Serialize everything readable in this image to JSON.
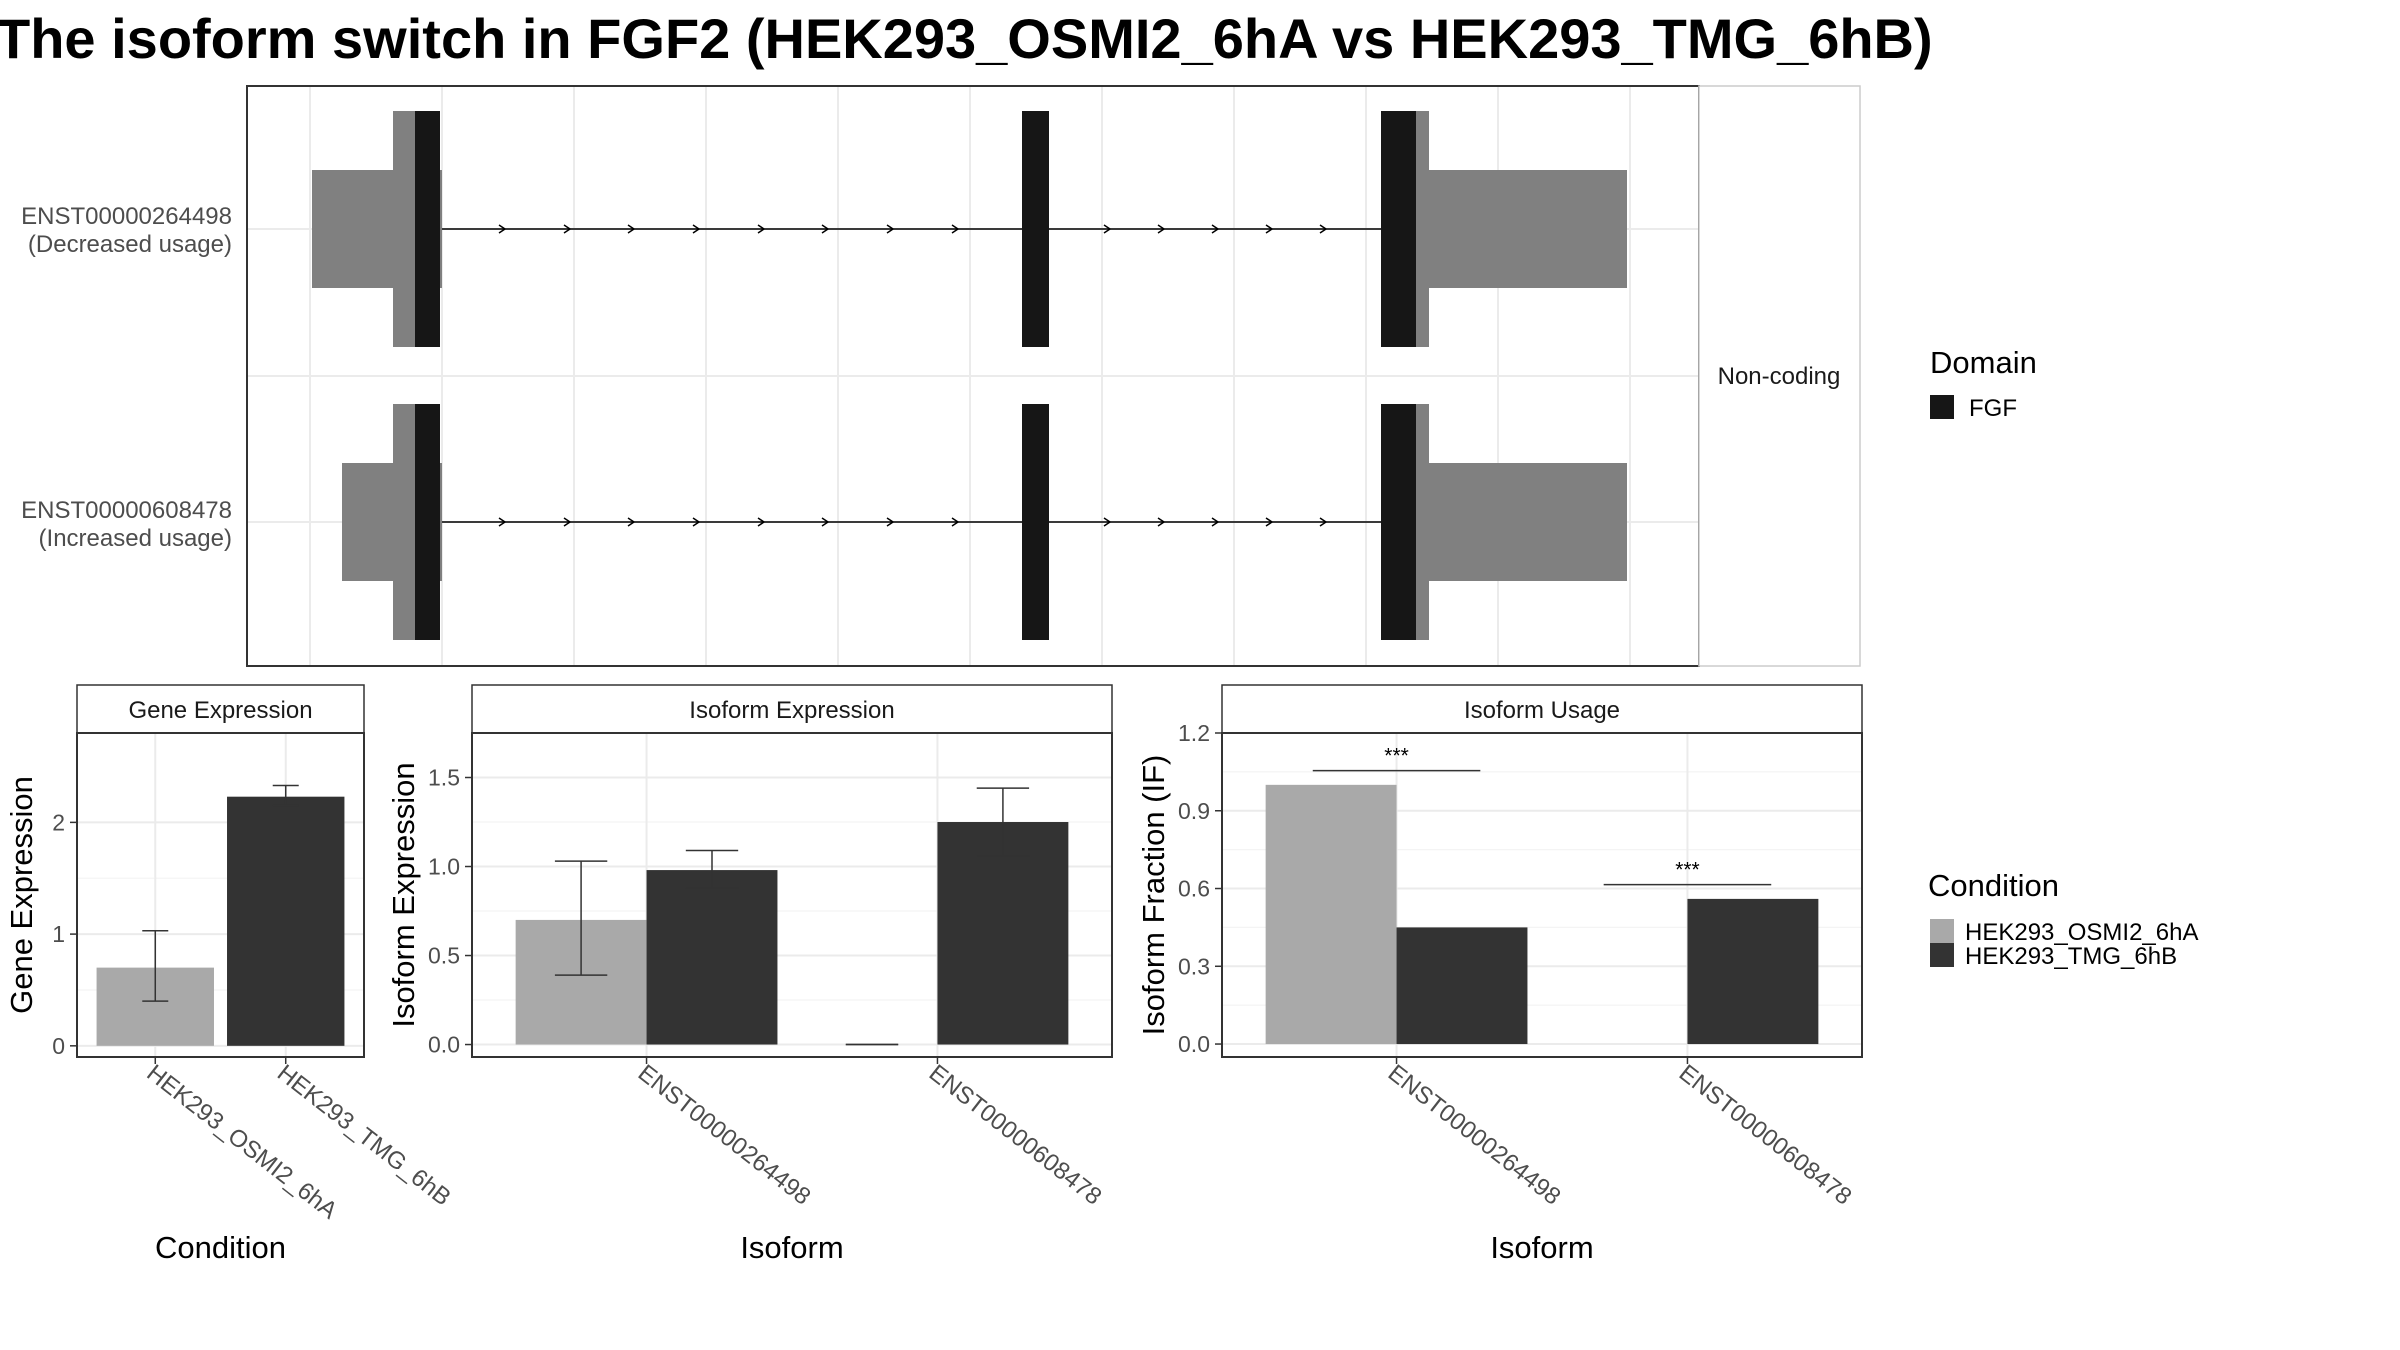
{
  "title": "The isoform switch in FGF2 (HEK293_OSMI2_6hA vs HEK293_TMG_6hB)",
  "colors": {
    "condition_a": "#A9A9A9",
    "condition_b": "#333333",
    "domain": "#161616",
    "utr": "#808080",
    "grid": "#EBEBEB",
    "panel_border": "#333333",
    "strip_fill": "#FFFFFF"
  },
  "structure": {
    "facet_label": "Non-coding",
    "transcripts": [
      {
        "id": "ENST00000264498",
        "usage_note": "(Decreased usage)"
      },
      {
        "id": "ENST00000608478",
        "usage_note": "(Increased usage)"
      }
    ],
    "legend": {
      "title": "Domain",
      "items": [
        {
          "label": "FGF",
          "color": "#161616"
        }
      ]
    }
  },
  "conditions": [
    {
      "name": "HEK293_OSMI2_6hA",
      "color": "#A9A9A9"
    },
    {
      "name": "HEK293_TMG_6hB",
      "color": "#333333"
    }
  ],
  "condition_legend_title": "Condition",
  "chart_data": [
    {
      "type": "bar",
      "panel": "Gene Expression",
      "title": "Gene Expression",
      "xlabel": "Condition",
      "ylabel": "Gene Expression",
      "categories": [
        "HEK293_OSMI2_6hA",
        "HEK293_TMG_6hB"
      ],
      "values": [
        0.7,
        2.23
      ],
      "error_low": [
        0.4,
        2.15
      ],
      "error_high": [
        1.03,
        2.33
      ],
      "ylim": [
        -0.1,
        2.8
      ],
      "yticks": [
        0,
        1,
        2
      ],
      "ytick_labels": [
        "0",
        "1",
        "2"
      ]
    },
    {
      "type": "bar",
      "panel": "Isoform Expression",
      "title": "Isoform Expression",
      "xlabel": "Isoform",
      "ylabel": "Isoform Expression",
      "categories": [
        "ENST00000264498",
        "ENST00000608478"
      ],
      "series": [
        {
          "name": "HEK293_OSMI2_6hA",
          "values": [
            0.7,
            0.0
          ],
          "error_low": [
            0.39,
            0.0
          ],
          "error_high": [
            1.03,
            0.0
          ]
        },
        {
          "name": "HEK293_TMG_6hB",
          "values": [
            0.98,
            1.25
          ],
          "error_low": [
            0.88,
            1.06
          ],
          "error_high": [
            1.09,
            1.44
          ]
        }
      ],
      "ylim": [
        -0.07,
        1.75
      ],
      "yticks": [
        0,
        0.5,
        1.0,
        1.5
      ],
      "ytick_labels": [
        "0.0",
        "0.5",
        "1.0",
        "1.5"
      ]
    },
    {
      "type": "bar",
      "panel": "Isoform Usage",
      "title": "Isoform Usage",
      "xlabel": "Isoform",
      "ylabel": "Isoform Fraction (IF)",
      "categories": [
        "ENST00000264498",
        "ENST00000608478"
      ],
      "series": [
        {
          "name": "HEK293_OSMI2_6hA",
          "values": [
            1.0,
            0.0
          ]
        },
        {
          "name": "HEK293_TMG_6hB",
          "values": [
            0.45,
            0.56
          ]
        }
      ],
      "significance": [
        "***",
        "***"
      ],
      "ylim": [
        -0.05,
        1.2
      ],
      "yticks": [
        0,
        0.3,
        0.6,
        0.9,
        1.2
      ],
      "ytick_labels": [
        "0.0",
        "0.3",
        "0.6",
        "0.9",
        "1.2"
      ]
    }
  ]
}
